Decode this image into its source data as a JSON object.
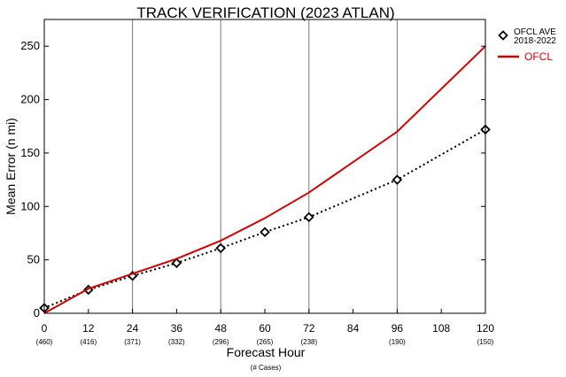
{
  "chart_data": {
    "type": "line",
    "title": "TRACK VERIFICATION (2023 ATLAN)",
    "xlabel": "Forecast Hour",
    "xlabel_sub": "(# Cases)",
    "ylabel": "Mean Error (n mi)",
    "xlim": [
      0,
      120
    ],
    "ylim": [
      0,
      275
    ],
    "x_ticks": [
      0,
      12,
      24,
      36,
      48,
      60,
      72,
      84,
      96,
      108,
      120
    ],
    "y_ticks": [
      0,
      50,
      100,
      150,
      200,
      250
    ],
    "vertical_gridlines": [
      24,
      48,
      72,
      96
    ],
    "case_counts": [
      {
        "x": 0,
        "label": "(460)"
      },
      {
        "x": 12,
        "label": "(416)"
      },
      {
        "x": 24,
        "label": "(371)"
      },
      {
        "x": 36,
        "label": "(332)"
      },
      {
        "x": 48,
        "label": "(296)"
      },
      {
        "x": 60,
        "label": "(265)"
      },
      {
        "x": 72,
        "label": "(238)"
      },
      {
        "x": 96,
        "label": "(190)"
      },
      {
        "x": 120,
        "label": "(150)"
      }
    ],
    "series": [
      {
        "name": "OFCL AVE 2018-2022",
        "legend_lines": [
          "OFCL AVE",
          "2018-2022"
        ],
        "style": "dotted-diamond",
        "color": "#000000",
        "x": [
          0,
          12,
          24,
          36,
          48,
          60,
          72,
          96,
          120
        ],
        "y": [
          5,
          22,
          35,
          47,
          61,
          76,
          90,
          125,
          172
        ]
      },
      {
        "name": "OFCL",
        "legend_lines": [
          "OFCL"
        ],
        "style": "solid",
        "color": "#d40000",
        "x": [
          0,
          12,
          24,
          36,
          48,
          60,
          72,
          96,
          120
        ],
        "y": [
          0,
          23,
          37,
          51,
          68,
          89,
          113,
          170,
          250
        ]
      }
    ],
    "legend_position": "right"
  }
}
